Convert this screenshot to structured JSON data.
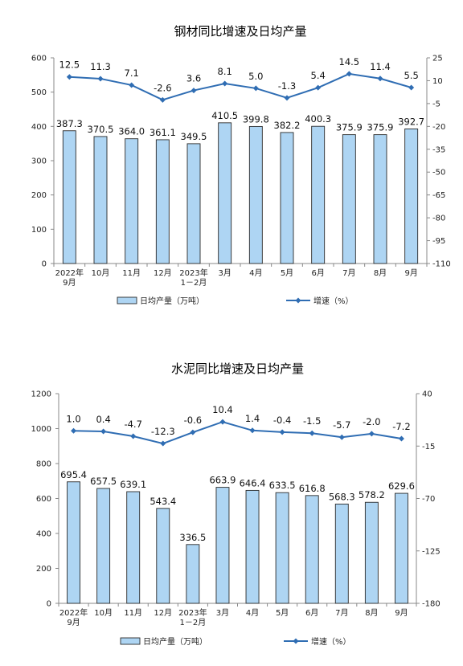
{
  "chart_data": [
    {
      "type": "bar",
      "title": "钢材同比增速及日均产量",
      "categories": [
        [
          "2022年",
          "9月"
        ],
        [
          "10月"
        ],
        [
          "11月"
        ],
        [
          "12月"
        ],
        [
          "2023年",
          "1－2月"
        ],
        [
          "3月"
        ],
        [
          "4月"
        ],
        [
          "5月"
        ],
        [
          "6月"
        ],
        [
          "7月"
        ],
        [
          "8月"
        ],
        [
          "9月"
        ]
      ],
      "series": [
        {
          "name": "日均产量（万吨）",
          "type": "bar",
          "axis": "left",
          "values": [
            387.3,
            370.5,
            364.0,
            361.1,
            349.5,
            410.5,
            399.8,
            382.2,
            400.3,
            375.9,
            375.9,
            392.7
          ],
          "labels": [
            "387.3",
            "370.5",
            "364.0",
            "361.1",
            "349.5",
            "410.5",
            "399.8",
            "382.2",
            "400.3",
            "375.9",
            "375.9",
            "392.7"
          ]
        },
        {
          "name": "增速（%）",
          "type": "line",
          "axis": "right",
          "values": [
            12.5,
            11.3,
            7.1,
            -2.6,
            3.6,
            8.1,
            5.0,
            -1.3,
            5.4,
            14.5,
            11.4,
            5.5
          ],
          "labels": [
            "12.5",
            "11.3",
            "7.1",
            "-2.6",
            "3.6",
            "8.1",
            "5.0",
            "-1.3",
            "5.4",
            "14.5",
            "11.4",
            "5.5"
          ]
        }
      ],
      "left_axis": {
        "min": 0,
        "max": 600,
        "ticks": [
          0,
          100,
          200,
          300,
          400,
          500,
          600
        ]
      },
      "right_axis": {
        "min": -110,
        "max": 25,
        "ticks": [
          25,
          10,
          -5,
          -20,
          -35,
          -50,
          -65,
          -80,
          -95,
          -110
        ]
      },
      "legend": {
        "placement": "bottom"
      },
      "colors": {
        "bar_fill": "#aed5f3",
        "bar_stroke": "#2a2a2a",
        "line": "#2f6db3"
      }
    },
    {
      "type": "bar",
      "title": "水泥同比增速及日均产量",
      "categories": [
        [
          "2022年",
          "9月"
        ],
        [
          "10月"
        ],
        [
          "11月"
        ],
        [
          "12月"
        ],
        [
          "2023年",
          "1－2月"
        ],
        [
          "3月"
        ],
        [
          "4月"
        ],
        [
          "5月"
        ],
        [
          "6月"
        ],
        [
          "7月"
        ],
        [
          "8月"
        ],
        [
          "9月"
        ]
      ],
      "series": [
        {
          "name": "日均产量（万吨）",
          "type": "bar",
          "axis": "left",
          "values": [
            695.4,
            657.5,
            639.1,
            543.4,
            336.5,
            663.9,
            646.4,
            633.5,
            616.8,
            568.3,
            578.2,
            629.6
          ],
          "labels": [
            "695.4",
            "657.5",
            "639.1",
            "543.4",
            "336.5",
            "663.9",
            "646.4",
            "633.5",
            "616.8",
            "568.3",
            "578.2",
            "629.6"
          ]
        },
        {
          "name": "增速（%）",
          "type": "line",
          "axis": "right",
          "values": [
            1.0,
            0.4,
            -4.7,
            -12.3,
            -0.6,
            10.4,
            1.4,
            -0.4,
            -1.5,
            -5.7,
            -2.0,
            -7.2
          ],
          "labels": [
            "1.0",
            "0.4",
            "-4.7",
            "-12.3",
            "-0.6",
            "10.4",
            "1.4",
            "-0.4",
            "-1.5",
            "-5.7",
            "-2.0",
            "-7.2"
          ]
        }
      ],
      "left_axis": {
        "min": 0,
        "max": 1200,
        "ticks": [
          0,
          200,
          400,
          600,
          800,
          1000,
          1200
        ]
      },
      "right_axis": {
        "min": -180,
        "max": 40,
        "ticks": [
          40,
          -15,
          -70,
          -125,
          -180
        ]
      },
      "legend": {
        "placement": "bottom"
      },
      "colors": {
        "bar_fill": "#aed5f3",
        "bar_stroke": "#2a2a2a",
        "line": "#2f6db3"
      }
    }
  ]
}
